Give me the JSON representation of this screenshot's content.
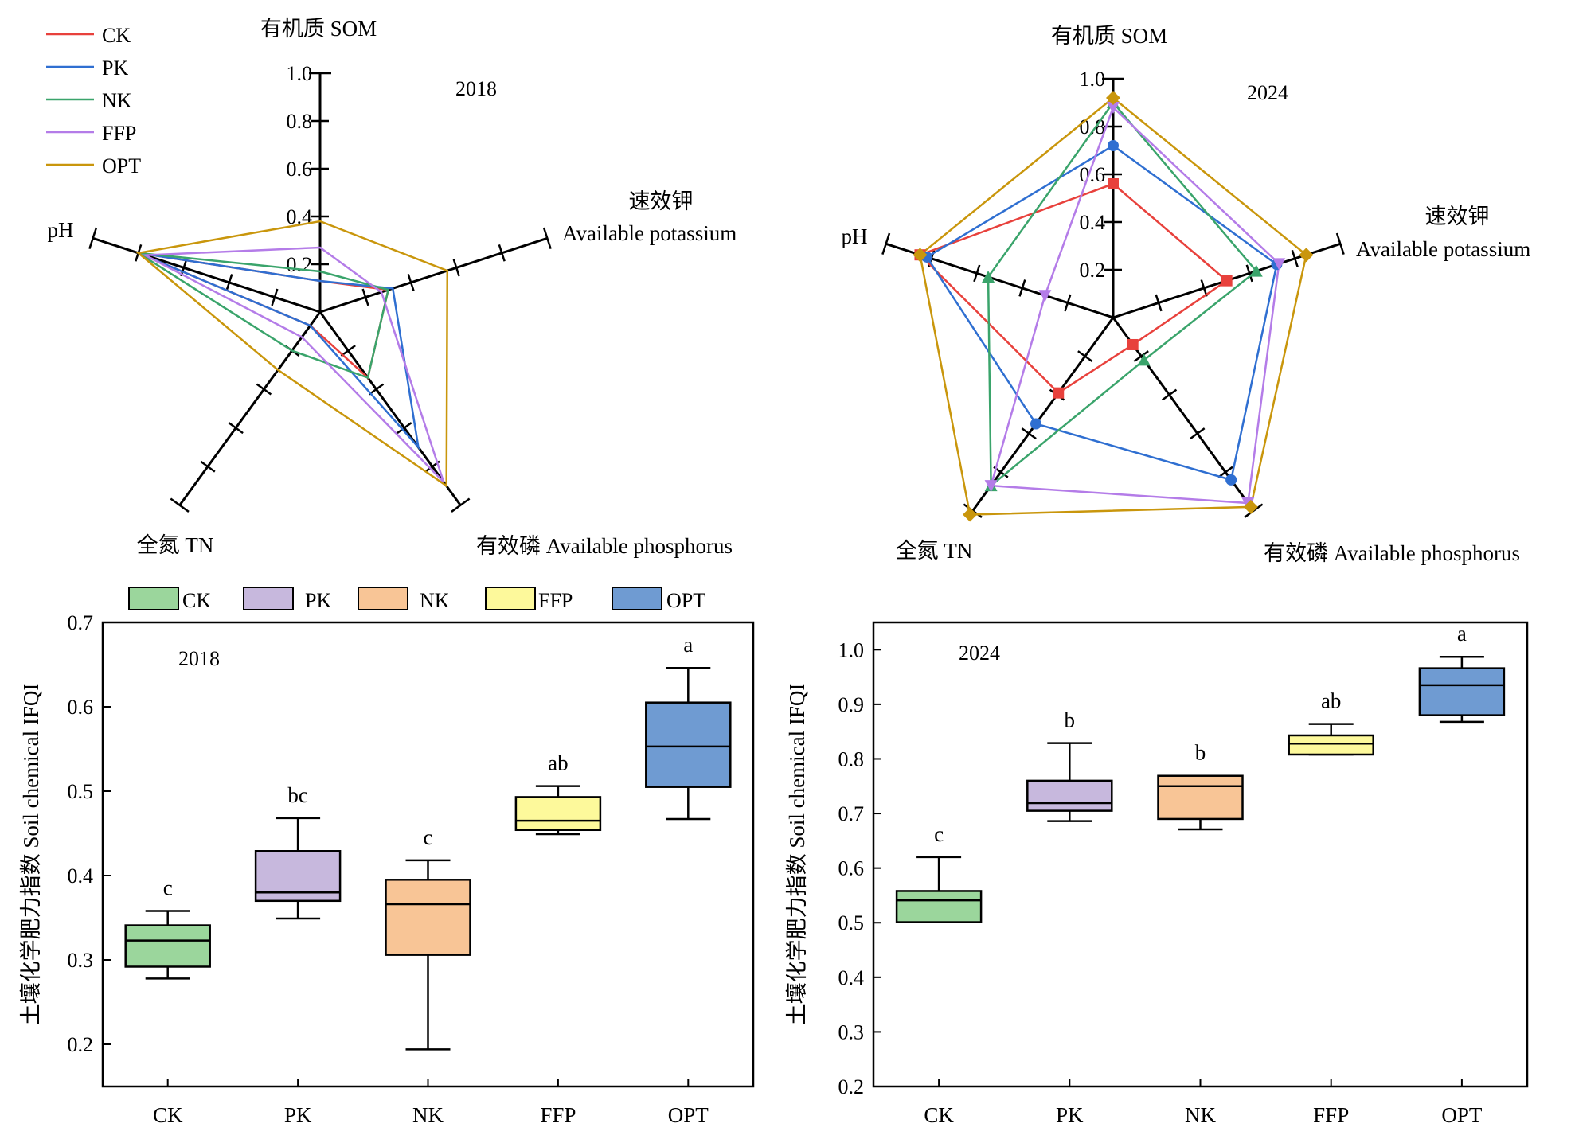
{
  "chart_data": [
    {
      "type": "radar",
      "year_label": "2018",
      "axes": [
        {
          "key": "som",
          "label": "有机质 SOM"
        },
        {
          "key": "ak",
          "label": "速效钾",
          "label2": "Available potassium"
        },
        {
          "key": "ap",
          "label": "有效磷 Available phosphorus"
        },
        {
          "key": "tn",
          "label": "全氮 TN"
        },
        {
          "key": "ph",
          "label": "pH"
        }
      ],
      "ticks": [
        "0.2",
        "0.4",
        "0.6",
        "0.8",
        "1.0"
      ],
      "range": [
        0,
        1
      ],
      "markers": false,
      "series": [
        {
          "name": "CK",
          "color": "#e8413c",
          "values": {
            "som": 0.13,
            "ak": 0.3,
            "ap": 0.34,
            "tn": 0.07,
            "ph": 0.8
          }
        },
        {
          "name": "PK",
          "color": "#2f6fd1",
          "values": {
            "som": 0.13,
            "ak": 0.32,
            "ap": 0.7,
            "tn": 0.07,
            "ph": 0.8
          }
        },
        {
          "name": "NK",
          "color": "#3aa46b",
          "values": {
            "som": 0.17,
            "ak": 0.3,
            "ap": 0.34,
            "tn": 0.2,
            "ph": 0.8
          }
        },
        {
          "name": "FFP",
          "color": "#b47ce8",
          "values": {
            "som": 0.27,
            "ak": 0.27,
            "ap": 0.88,
            "tn": 0.13,
            "ph": 0.77
          }
        },
        {
          "name": "OPT",
          "color": "#c9960c",
          "values": {
            "som": 0.38,
            "ak": 0.56,
            "ap": 0.9,
            "tn": 0.3,
            "ph": 0.8
          }
        }
      ]
    },
    {
      "type": "radar",
      "year_label": "2024",
      "axes": [
        {
          "key": "som",
          "label": "有机质 SOM"
        },
        {
          "key": "ak",
          "label": "速效钾",
          "label2": "Available potassium"
        },
        {
          "key": "ap",
          "label": "有效磷 Available phosphorus"
        },
        {
          "key": "tn",
          "label": "全氮 TN"
        },
        {
          "key": "ph",
          "label": "pH"
        }
      ],
      "ticks": [
        "0.2",
        "0.4",
        "0.6",
        "0.8",
        "1.0"
      ],
      "range": [
        0,
        1
      ],
      "markers": true,
      "series": [
        {
          "name": "CK",
          "color": "#e8413c",
          "marker": "square",
          "values": {
            "som": 0.56,
            "ak": 0.5,
            "ap": 0.14,
            "tn": 0.39,
            "ph": 0.85
          }
        },
        {
          "name": "PK",
          "color": "#2f6fd1",
          "marker": "circle",
          "values": {
            "som": 0.72,
            "ak": 0.72,
            "ap": 0.84,
            "tn": 0.55,
            "ph": 0.82
          }
        },
        {
          "name": "NK",
          "color": "#3aa46b",
          "marker": "triangle",
          "values": {
            "som": 0.9,
            "ak": 0.63,
            "ap": 0.22,
            "tn": 0.87,
            "ph": 0.55
          }
        },
        {
          "name": "FFP",
          "color": "#b47ce8",
          "marker": "triangle-down",
          "values": {
            "som": 0.88,
            "ak": 0.73,
            "ap": 0.96,
            "tn": 0.87,
            "ph": 0.3
          }
        },
        {
          "name": "OPT",
          "color": "#c9960c",
          "marker": "diamond",
          "values": {
            "som": 0.92,
            "ak": 0.85,
            "ap": 0.98,
            "tn": 1.02,
            "ph": 0.85
          }
        }
      ]
    },
    {
      "type": "box",
      "year_label": "2018",
      "ylabel": "土壤化学肥力指数 Soil chemical IFQI",
      "ylim": [
        0.15,
        0.7
      ],
      "yticks": [
        "0.2",
        "0.3",
        "0.4",
        "0.5",
        "0.6",
        "0.7"
      ],
      "categories": [
        "CK",
        "PK",
        "NK",
        "FFP",
        "OPT"
      ],
      "boxes": [
        {
          "min": 0.278,
          "q1": 0.292,
          "median": 0.323,
          "q3": 0.341,
          "max": 0.358,
          "letter": "c"
        },
        {
          "min": 0.349,
          "q1": 0.37,
          "median": 0.38,
          "q3": 0.429,
          "max": 0.468,
          "letter": "bc"
        },
        {
          "min": 0.194,
          "q1": 0.306,
          "median": 0.366,
          "q3": 0.395,
          "max": 0.418,
          "letter": "c"
        },
        {
          "min": 0.449,
          "q1": 0.454,
          "median": 0.465,
          "q3": 0.493,
          "max": 0.506,
          "letter": "ab"
        },
        {
          "min": 0.467,
          "q1": 0.505,
          "median": 0.553,
          "q3": 0.605,
          "max": 0.646,
          "letter": "a"
        }
      ]
    },
    {
      "type": "box",
      "year_label": "2024",
      "ylabel": "土壤化学肥力指数 Soil chemical IFQI",
      "ylim": [
        0.2,
        1.05
      ],
      "yticks": [
        "0.2",
        "0.3",
        "0.4",
        "0.5",
        "0.6",
        "0.7",
        "0.8",
        "0.9",
        "1.0"
      ],
      "categories": [
        "CK",
        "PK",
        "NK",
        "FFP",
        "OPT"
      ],
      "boxes": [
        {
          "min": 0.501,
          "q1": 0.501,
          "median": 0.541,
          "q3": 0.558,
          "max": 0.62,
          "letter": "c"
        },
        {
          "min": 0.686,
          "q1": 0.705,
          "median": 0.719,
          "q3": 0.76,
          "max": 0.829,
          "letter": "b"
        },
        {
          "min": 0.671,
          "q1": 0.69,
          "median": 0.75,
          "q3": 0.769,
          "max": 0.769,
          "letter": "b"
        },
        {
          "min": 0.808,
          "q1": 0.808,
          "median": 0.828,
          "q3": 0.843,
          "max": 0.864,
          "letter": "ab"
        },
        {
          "min": 0.868,
          "q1": 0.88,
          "median": 0.935,
          "q3": 0.966,
          "max": 0.987,
          "letter": "a"
        }
      ]
    }
  ],
  "radar_legend": [
    {
      "name": "CK",
      "color": "#e8413c"
    },
    {
      "name": "PK",
      "color": "#2f6fd1"
    },
    {
      "name": "NK",
      "color": "#3aa46b"
    },
    {
      "name": "FFP",
      "color": "#b47ce8"
    },
    {
      "name": "OPT",
      "color": "#c9960c"
    }
  ],
  "box_legend": [
    {
      "name": "CK",
      "color": "#9bd69c"
    },
    {
      "name": "PK",
      "color": "#c7b8dd"
    },
    {
      "name": "NK",
      "color": "#f8c596"
    },
    {
      "name": "FFP",
      "color": "#fdf99b"
    },
    {
      "name": "OPT",
      "color": "#6f9bd2"
    }
  ]
}
